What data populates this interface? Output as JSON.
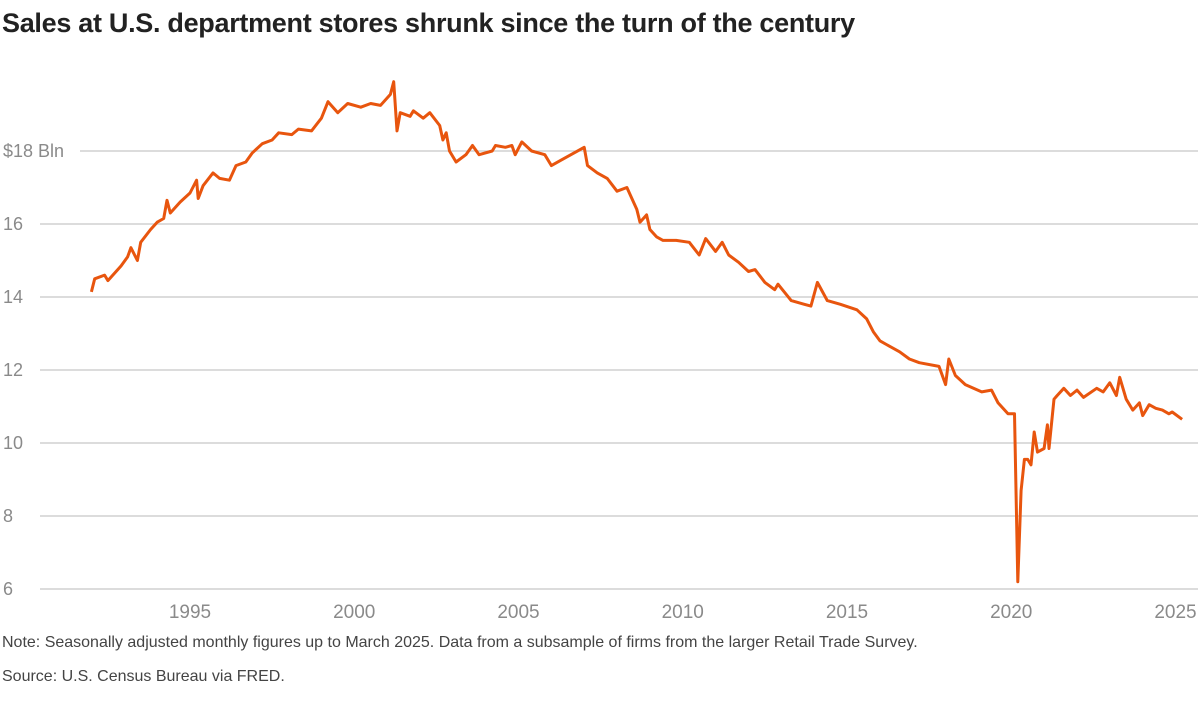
{
  "chart_data": {
    "type": "line",
    "title": "Sales at U.S. department stores shrunk since the turn of the century",
    "xlabel": "",
    "ylabel": "",
    "y_unit_label": "$18 Bln",
    "xlim": [
      1992.0,
      2025.3
    ],
    "ylim": [
      6,
      20
    ],
    "yticks": [
      6,
      8,
      10,
      12,
      14,
      16,
      18
    ],
    "ytick_labels": [
      "6",
      "8",
      "10",
      "12",
      "14",
      "16",
      "$18 Bln"
    ],
    "xticks": [
      1995,
      2000,
      2005,
      2010,
      2015,
      2020,
      2025
    ],
    "xtick_labels": [
      "1995",
      "2000",
      "2005",
      "2010",
      "2015",
      "2020",
      "2025"
    ],
    "grid": "horizontal",
    "color": "#e8550e",
    "series": [
      {
        "points": [
          [
            1992.0,
            14.14
          ],
          [
            1992.1,
            14.5
          ],
          [
            1992.4,
            14.6
          ],
          [
            1992.5,
            14.45
          ],
          [
            1992.9,
            14.85
          ],
          [
            1993.1,
            15.1
          ],
          [
            1993.2,
            15.35
          ],
          [
            1993.4,
            15.0
          ],
          [
            1993.5,
            15.5
          ],
          [
            1993.8,
            15.85
          ],
          [
            1994.0,
            16.05
          ],
          [
            1994.2,
            16.15
          ],
          [
            1994.3,
            16.65
          ],
          [
            1994.4,
            16.3
          ],
          [
            1994.7,
            16.6
          ],
          [
            1995.0,
            16.85
          ],
          [
            1995.2,
            17.2
          ],
          [
            1995.25,
            16.7
          ],
          [
            1995.4,
            17.05
          ],
          [
            1995.7,
            17.4
          ],
          [
            1995.9,
            17.25
          ],
          [
            1996.2,
            17.2
          ],
          [
            1996.4,
            17.6
          ],
          [
            1996.7,
            17.7
          ],
          [
            1996.9,
            17.95
          ],
          [
            1997.2,
            18.2
          ],
          [
            1997.5,
            18.3
          ],
          [
            1997.7,
            18.5
          ],
          [
            1998.1,
            18.45
          ],
          [
            1998.3,
            18.6
          ],
          [
            1998.7,
            18.55
          ],
          [
            1999.0,
            18.9
          ],
          [
            1999.2,
            19.35
          ],
          [
            1999.5,
            19.05
          ],
          [
            1999.8,
            19.3
          ],
          [
            2000.2,
            19.2
          ],
          [
            2000.5,
            19.3
          ],
          [
            2000.8,
            19.25
          ],
          [
            2001.1,
            19.55
          ],
          [
            2001.2,
            19.9
          ],
          [
            2001.3,
            18.55
          ],
          [
            2001.4,
            19.05
          ],
          [
            2001.7,
            18.95
          ],
          [
            2001.8,
            19.1
          ],
          [
            2002.1,
            18.9
          ],
          [
            2002.3,
            19.05
          ],
          [
            2002.6,
            18.7
          ],
          [
            2002.7,
            18.3
          ],
          [
            2002.8,
            18.5
          ],
          [
            2002.9,
            18.0
          ],
          [
            2003.1,
            17.7
          ],
          [
            2003.4,
            17.9
          ],
          [
            2003.6,
            18.15
          ],
          [
            2003.8,
            17.9
          ],
          [
            2004.2,
            18.0
          ],
          [
            2004.3,
            18.15
          ],
          [
            2004.6,
            18.1
          ],
          [
            2004.8,
            18.15
          ],
          [
            2004.9,
            17.9
          ],
          [
            2005.1,
            18.25
          ],
          [
            2005.4,
            18.0
          ],
          [
            2005.8,
            17.9
          ],
          [
            2006.0,
            17.6
          ],
          [
            2006.3,
            17.75
          ],
          [
            2007.0,
            18.1
          ],
          [
            2007.1,
            17.6
          ],
          [
            2007.4,
            17.4
          ],
          [
            2007.7,
            17.25
          ],
          [
            2008.0,
            16.9
          ],
          [
            2008.3,
            17.0
          ],
          [
            2008.6,
            16.4
          ],
          [
            2008.7,
            16.05
          ],
          [
            2008.9,
            16.25
          ],
          [
            2009.0,
            15.85
          ],
          [
            2009.2,
            15.65
          ],
          [
            2009.4,
            15.55
          ],
          [
            2009.8,
            15.55
          ],
          [
            2010.2,
            15.5
          ],
          [
            2010.5,
            15.15
          ],
          [
            2010.7,
            15.6
          ],
          [
            2011.0,
            15.25
          ],
          [
            2011.2,
            15.5
          ],
          [
            2011.4,
            15.15
          ],
          [
            2011.7,
            14.95
          ],
          [
            2012.0,
            14.7
          ],
          [
            2012.2,
            14.75
          ],
          [
            2012.5,
            14.4
          ],
          [
            2012.8,
            14.2
          ],
          [
            2012.9,
            14.35
          ],
          [
            2013.3,
            13.9
          ],
          [
            2013.7,
            13.8
          ],
          [
            2013.9,
            13.75
          ],
          [
            2014.1,
            14.4
          ],
          [
            2014.4,
            13.9
          ],
          [
            2014.8,
            13.8
          ],
          [
            2015.3,
            13.65
          ],
          [
            2015.6,
            13.4
          ],
          [
            2015.8,
            13.05
          ],
          [
            2016.0,
            12.8
          ],
          [
            2016.2,
            12.7
          ],
          [
            2016.6,
            12.5
          ],
          [
            2016.9,
            12.3
          ],
          [
            2017.2,
            12.2
          ],
          [
            2017.8,
            12.1
          ],
          [
            2018.0,
            11.6
          ],
          [
            2018.1,
            12.3
          ],
          [
            2018.3,
            11.85
          ],
          [
            2018.6,
            11.6
          ],
          [
            2019.1,
            11.4
          ],
          [
            2019.4,
            11.45
          ],
          [
            2019.6,
            11.1
          ],
          [
            2019.9,
            10.8
          ],
          [
            2020.1,
            10.8
          ],
          [
            2020.2,
            6.2
          ],
          [
            2020.3,
            8.7
          ],
          [
            2020.4,
            9.55
          ],
          [
            2020.5,
            9.55
          ],
          [
            2020.6,
            9.4
          ],
          [
            2020.7,
            10.3
          ],
          [
            2020.8,
            9.75
          ],
          [
            2021.0,
            9.85
          ],
          [
            2021.1,
            10.5
          ],
          [
            2021.15,
            9.85
          ],
          [
            2021.3,
            11.2
          ],
          [
            2021.4,
            11.3
          ],
          [
            2021.6,
            11.5
          ],
          [
            2021.8,
            11.3
          ],
          [
            2022.0,
            11.45
          ],
          [
            2022.2,
            11.25
          ],
          [
            2022.6,
            11.5
          ],
          [
            2022.8,
            11.4
          ],
          [
            2023.0,
            11.65
          ],
          [
            2023.2,
            11.3
          ],
          [
            2023.3,
            11.8
          ],
          [
            2023.5,
            11.2
          ],
          [
            2023.7,
            10.9
          ],
          [
            2023.9,
            11.1
          ],
          [
            2024.0,
            10.75
          ],
          [
            2024.2,
            11.05
          ],
          [
            2024.4,
            10.95
          ],
          [
            2024.6,
            10.9
          ],
          [
            2024.8,
            10.8
          ],
          [
            2024.9,
            10.85
          ],
          [
            2025.2,
            10.65
          ]
        ]
      }
    ]
  },
  "notes": {
    "note": "Note: Seasonally adjusted monthly figures up to March 2025. Data from a subsample of firms from the larger Retail Trade Survey.",
    "source": "Source: U.S. Census Bureau via FRED."
  }
}
